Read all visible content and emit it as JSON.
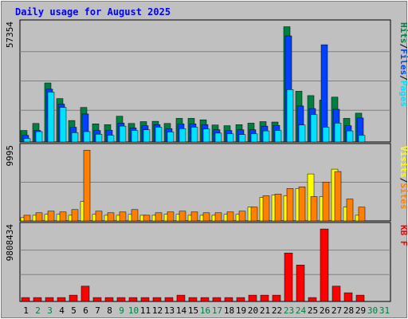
{
  "title": "Daily usage for August 2025",
  "chart_data": [
    {
      "type": "bar",
      "panel": "top",
      "max_label": "57354",
      "ylim": [
        0,
        57354
      ],
      "categories": [
        "1",
        "2",
        "3",
        "4",
        "5",
        "6",
        "7",
        "8",
        "9",
        "10",
        "11",
        "12",
        "13",
        "14",
        "15",
        "16",
        "17",
        "18",
        "19",
        "20",
        "21",
        "22",
        "23",
        "24",
        "25",
        "26",
        "27",
        "28",
        "29",
        "30",
        "31"
      ],
      "legend": [
        {
          "label": "Pages",
          "color": "#00e0ff"
        },
        {
          "label": "Files",
          "color": "#0040ff"
        },
        {
          "label": "Hits",
          "color": "#008040"
        }
      ],
      "series": [
        {
          "name": "Hits",
          "values": [
            5680,
            9160,
            29290,
            21520,
            10630,
            17110,
            8970,
            8600,
            12790,
            9160,
            10080,
            10260,
            9160,
            11710,
            11710,
            10990,
            8420,
            8050,
            8600,
            9330,
            10080,
            9890,
            57170,
            25170,
            22970,
            20770,
            22240,
            11710,
            14260,
            0,
            0
          ]
        },
        {
          "name": "Files",
          "values": [
            3300,
            5680,
            26180,
            18770,
            7330,
            13890,
            5680,
            5860,
            9330,
            6950,
            8050,
            8600,
            6600,
            8970,
            8970,
            8600,
            6050,
            5680,
            6050,
            6050,
            7870,
            8230,
            52600,
            17850,
            16570,
            48210,
            16210,
            8050,
            11890,
            0,
            0
          ]
        },
        {
          "name": "Pages",
          "values": [
            1650,
            5130,
            24720,
            17110,
            4580,
            5130,
            3860,
            3300,
            7870,
            5680,
            6050,
            7330,
            4960,
            6600,
            7330,
            6410,
            4400,
            4040,
            3680,
            4040,
            5500,
            5680,
            26000,
            8420,
            13530,
            7330,
            9330,
            5500,
            3300,
            0,
            0
          ]
        }
      ]
    },
    {
      "type": "bar",
      "panel": "middle",
      "max_label": "9995",
      "ylim": [
        0,
        9995
      ],
      "categories": [
        "1",
        "2",
        "3",
        "4",
        "5",
        "6",
        "7",
        "8",
        "9",
        "10",
        "11",
        "12",
        "13",
        "14",
        "15",
        "16",
        "17",
        "18",
        "19",
        "20",
        "21",
        "22",
        "23",
        "24",
        "25",
        "26",
        "27",
        "28",
        "29",
        "30",
        "31"
      ],
      "legend": [
        {
          "label": "Sites",
          "color": "#ff8000"
        },
        {
          "label": "Visits",
          "color": "#ffff00"
        }
      ],
      "series": [
        {
          "name": "Visits",
          "values": [
            460,
            800,
            920,
            920,
            800,
            2740,
            920,
            800,
            800,
            920,
            800,
            800,
            920,
            920,
            800,
            800,
            800,
            920,
            920,
            1940,
            3310,
            3650,
            3540,
            4560,
            6610,
            3420,
            7290,
            1940,
            800,
            0,
            0
          ]
        },
        {
          "name": "Sites",
          "values": [
            800,
            1140,
            1370,
            1260,
            1600,
            9950,
            1370,
            1140,
            1260,
            1600,
            800,
            1140,
            1260,
            1370,
            1260,
            1140,
            1140,
            1260,
            1370,
            1940,
            3540,
            3770,
            4560,
            4790,
            3420,
            5470,
            6950,
            3080,
            1940,
            0,
            0
          ]
        }
      ]
    },
    {
      "type": "bar",
      "panel": "bottom",
      "max_label": "9808434",
      "ylim": [
        0,
        9808434
      ],
      "categories": [
        "1",
        "2",
        "3",
        "4",
        "5",
        "6",
        "7",
        "8",
        "9",
        "10",
        "11",
        "12",
        "13",
        "14",
        "15",
        "16",
        "17",
        "18",
        "19",
        "20",
        "21",
        "22",
        "23",
        "24",
        "25",
        "26",
        "27",
        "28",
        "29",
        "30",
        "31"
      ],
      "legend": [
        {
          "label": "KB F",
          "color": "#ff0000"
        }
      ],
      "series": [
        {
          "name": "KB F",
          "values": [
            530000,
            530000,
            530000,
            530000,
            850000,
            2070000,
            530000,
            530000,
            530000,
            530000,
            530000,
            530000,
            530000,
            850000,
            530000,
            530000,
            530000,
            530000,
            530000,
            850000,
            850000,
            850000,
            6550000,
            4930000,
            530000,
            9800000,
            2070000,
            1170000,
            850000,
            0,
            0
          ]
        }
      ]
    }
  ],
  "colors": {
    "background": "#c0c0c0",
    "plot_bg": "#c0c0c0",
    "title": "#0000ff",
    "axis_text": "#000000",
    "weekend_label": "#008040",
    "grid": "#808080",
    "separator": "#000000"
  },
  "weekend_days": [
    "2",
    "3",
    "9",
    "10",
    "16",
    "17",
    "23",
    "24",
    "30",
    "31"
  ]
}
